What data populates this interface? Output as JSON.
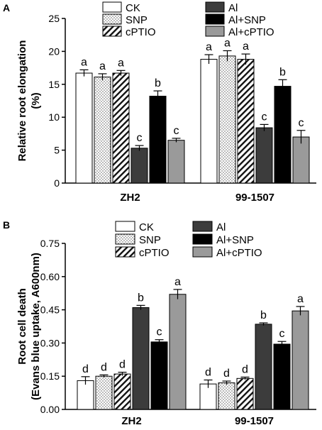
{
  "chart_data": [
    {
      "panel": "A",
      "type": "bar",
      "ylabel": [
        "Relative root elongation",
        "(%)"
      ],
      "ylim": [
        0,
        25
      ],
      "yticks": [
        0,
        5,
        10,
        15,
        20,
        25
      ],
      "categories": [
        "ZH2",
        "99-1507"
      ],
      "legend": [
        "CK",
        "SNP",
        "cPTIO",
        "Al",
        "Al+SNP",
        "Al+cPTIO"
      ],
      "series": [
        {
          "name": "CK",
          "pattern": "white",
          "values": [
            16.7,
            18.8
          ],
          "errors": [
            0.5,
            0.7
          ],
          "labels": [
            "a",
            "a"
          ]
        },
        {
          "name": "SNP",
          "pattern": "dots",
          "values": [
            16.1,
            19.3
          ],
          "errors": [
            0.5,
            0.8
          ],
          "labels": [
            "a",
            "a"
          ]
        },
        {
          "name": "cPTIO",
          "pattern": "hatch",
          "values": [
            16.7,
            18.8
          ],
          "errors": [
            0.4,
            0.8
          ],
          "labels": [
            "a",
            "a"
          ]
        },
        {
          "name": "Al",
          "pattern": "#3c3c3c",
          "values": [
            5.3,
            8.4
          ],
          "errors": [
            0.4,
            0.5
          ],
          "labels": [
            "c",
            "c"
          ]
        },
        {
          "name": "Al+SNP",
          "pattern": "#000000",
          "values": [
            13.2,
            14.7
          ],
          "errors": [
            0.8,
            1.0
          ],
          "labels": [
            "b",
            "b"
          ]
        },
        {
          "name": "Al+cPTIO",
          "pattern": "#9a9a9a",
          "values": [
            6.5,
            7.0
          ],
          "errors": [
            0.3,
            1.0
          ],
          "labels": [
            "c",
            "c"
          ]
        }
      ]
    },
    {
      "panel": "B",
      "type": "bar",
      "ylabel": [
        "Root cell death",
        "(Evans blue uptake, A600nm)"
      ],
      "ylim": [
        0,
        0.75
      ],
      "yticks": [
        "0.00",
        "0.15",
        "0.30",
        "0.45",
        "0.60",
        "0.75"
      ],
      "categories": [
        "ZH2",
        "99-1507"
      ],
      "legend": [
        "CK",
        "SNP",
        "cPTIO",
        "Al",
        "Al+SNP",
        "Al+cPTIO"
      ],
      "series": [
        {
          "name": "CK",
          "pattern": "white",
          "values": [
            0.13,
            0.115
          ],
          "errors": [
            0.018,
            0.018
          ],
          "labels": [
            "d",
            "d"
          ]
        },
        {
          "name": "SNP",
          "pattern": "dots",
          "values": [
            0.15,
            0.12
          ],
          "errors": [
            0.006,
            0.008
          ],
          "labels": [
            "d",
            "d"
          ]
        },
        {
          "name": "cPTIO",
          "pattern": "hatch",
          "values": [
            0.16,
            0.14
          ],
          "errors": [
            0.008,
            0.006
          ],
          "labels": [
            "d",
            "d"
          ]
        },
        {
          "name": "Al",
          "pattern": "#3c3c3c",
          "values": [
            0.46,
            0.385
          ],
          "errors": [
            0.01,
            0.006
          ],
          "labels": [
            "b",
            "b"
          ]
        },
        {
          "name": "Al+SNP",
          "pattern": "#000000",
          "values": [
            0.305,
            0.295
          ],
          "errors": [
            0.01,
            0.012
          ],
          "labels": [
            "c",
            "c"
          ]
        },
        {
          "name": "Al+cPTIO",
          "pattern": "#9a9a9a",
          "values": [
            0.52,
            0.445
          ],
          "errors": [
            0.022,
            0.02
          ],
          "labels": [
            "a",
            "a"
          ]
        }
      ]
    }
  ]
}
